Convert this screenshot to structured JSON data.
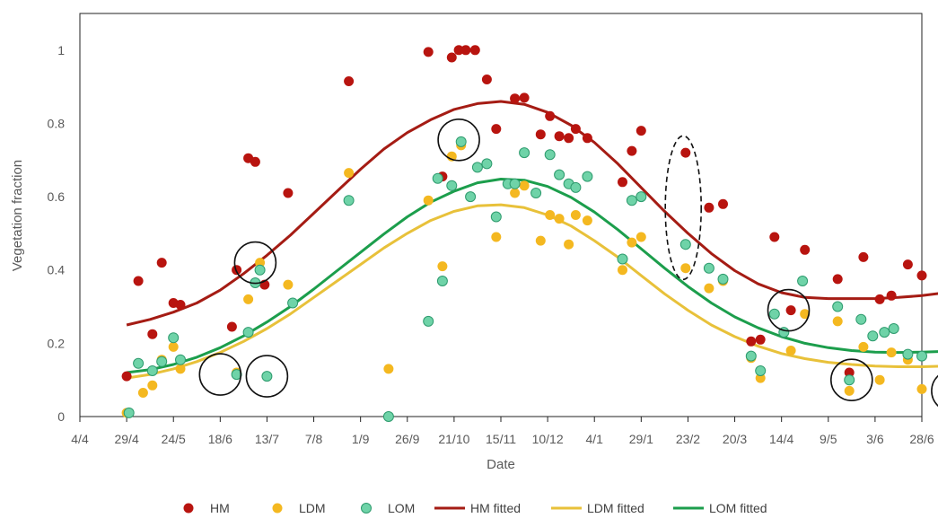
{
  "chart_data": {
    "type": "scatter",
    "xlabel": "Date",
    "ylabel": "Vegetation fraction",
    "x_ticks": [
      "4/4",
      "29/4",
      "24/5",
      "18/6",
      "13/7",
      "7/8",
      "1/9",
      "26/9",
      "21/10",
      "15/11",
      "10/12",
      "4/1",
      "29/1",
      "23/2",
      "20/3",
      "14/4",
      "9/5",
      "3/6",
      "28/6"
    ],
    "y_ticks": [
      "0",
      "0.2",
      "0.4",
      "0.6",
      "0.8",
      "1"
    ],
    "ylim": [
      0,
      1.1
    ],
    "grid": false,
    "legend_position": "bottom",
    "colors": {
      "HM": "#b8140f",
      "LDM": "#f4b820",
      "LOM": "#6fd3a8",
      "LOM_edge": "#2e9b6e",
      "HM_fit": "#a51c14",
      "LDM_fit": "#e8c13a",
      "LOM_fit": "#1c9e4c"
    },
    "series": [
      {
        "name": "HM",
        "kind": "scatter",
        "points": [
          [
            1.0,
            0.11
          ],
          [
            1.25,
            0.37
          ],
          [
            1.55,
            0.225
          ],
          [
            1.75,
            0.42
          ],
          [
            2.0,
            0.31
          ],
          [
            2.15,
            0.305
          ],
          [
            3.25,
            0.245
          ],
          [
            3.35,
            0.4
          ],
          [
            3.6,
            0.705
          ],
          [
            3.75,
            0.695
          ],
          [
            3.95,
            0.36
          ],
          [
            4.45,
            0.61
          ],
          [
            5.75,
            0.915
          ],
          [
            7.45,
            0.995
          ],
          [
            7.75,
            0.655
          ],
          [
            7.95,
            0.98
          ],
          [
            8.1,
            1.0
          ],
          [
            8.25,
            1.0
          ],
          [
            8.45,
            1.0
          ],
          [
            8.7,
            0.92
          ],
          [
            8.9,
            0.785
          ],
          [
            9.3,
            0.868
          ],
          [
            9.5,
            0.87
          ],
          [
            9.85,
            0.77
          ],
          [
            10.05,
            0.82
          ],
          [
            10.25,
            0.765
          ],
          [
            10.45,
            0.76
          ],
          [
            10.6,
            0.785
          ],
          [
            10.85,
            0.76
          ],
          [
            11.6,
            0.64
          ],
          [
            11.8,
            0.725
          ],
          [
            12.0,
            0.78
          ],
          [
            12.95,
            0.72
          ],
          [
            13.45,
            0.57
          ],
          [
            13.75,
            0.58
          ],
          [
            14.35,
            0.205
          ],
          [
            14.55,
            0.21
          ],
          [
            14.85,
            0.49
          ],
          [
            15.2,
            0.29
          ],
          [
            15.5,
            0.455
          ],
          [
            16.2,
            0.375
          ],
          [
            16.45,
            0.12
          ],
          [
            16.75,
            0.435
          ],
          [
            17.1,
            0.32
          ],
          [
            17.35,
            0.33
          ],
          [
            17.7,
            0.415
          ],
          [
            18.0,
            0.385
          ],
          [
            18.65,
            0.19
          ],
          [
            18.95,
            0.345
          ],
          [
            19.5,
            0.475
          ],
          [
            19.8,
            0.36
          ]
        ]
      },
      {
        "name": "LDM",
        "kind": "scatter",
        "points": [
          [
            1.0,
            0.01
          ],
          [
            1.35,
            0.065
          ],
          [
            1.55,
            0.085
          ],
          [
            1.75,
            0.155
          ],
          [
            2.0,
            0.19
          ],
          [
            2.15,
            0.13
          ],
          [
            3.35,
            0.12
          ],
          [
            3.6,
            0.32
          ],
          [
            3.85,
            0.42
          ],
          [
            4.0,
            0.11
          ],
          [
            4.45,
            0.36
          ],
          [
            5.75,
            0.665
          ],
          [
            6.6,
            0.13
          ],
          [
            7.45,
            0.59
          ],
          [
            7.75,
            0.41
          ],
          [
            7.95,
            0.71
          ],
          [
            8.15,
            0.74
          ],
          [
            8.5,
            0.68
          ],
          [
            8.9,
            0.49
          ],
          [
            9.3,
            0.61
          ],
          [
            9.5,
            0.63
          ],
          [
            9.85,
            0.48
          ],
          [
            10.05,
            0.55
          ],
          [
            10.25,
            0.54
          ],
          [
            10.45,
            0.47
          ],
          [
            10.6,
            0.55
          ],
          [
            10.85,
            0.535
          ],
          [
            11.6,
            0.4
          ],
          [
            11.8,
            0.475
          ],
          [
            12.0,
            0.49
          ],
          [
            12.95,
            0.405
          ],
          [
            13.45,
            0.35
          ],
          [
            13.75,
            0.37
          ],
          [
            14.35,
            0.16
          ],
          [
            14.55,
            0.105
          ],
          [
            14.85,
            0.28
          ],
          [
            15.2,
            0.18
          ],
          [
            15.5,
            0.28
          ],
          [
            16.2,
            0.26
          ],
          [
            16.45,
            0.07
          ],
          [
            16.75,
            0.19
          ],
          [
            17.1,
            0.1
          ],
          [
            17.35,
            0.175
          ],
          [
            17.7,
            0.155
          ],
          [
            18.0,
            0.075
          ],
          [
            18.65,
            0.065
          ],
          [
            18.95,
            0.11
          ],
          [
            19.5,
            0.175
          ],
          [
            19.8,
            0.085
          ]
        ]
      },
      {
        "name": "LOM",
        "kind": "scatter",
        "points": [
          [
            1.05,
            0.01
          ],
          [
            1.25,
            0.145
          ],
          [
            1.55,
            0.125
          ],
          [
            1.75,
            0.15
          ],
          [
            2.0,
            0.215
          ],
          [
            2.15,
            0.155
          ],
          [
            3.35,
            0.115
          ],
          [
            3.6,
            0.23
          ],
          [
            3.75,
            0.365
          ],
          [
            3.85,
            0.4
          ],
          [
            4.0,
            0.11
          ],
          [
            4.55,
            0.31
          ],
          [
            5.75,
            0.59
          ],
          [
            6.6,
            0.0
          ],
          [
            7.45,
            0.26
          ],
          [
            7.65,
            0.65
          ],
          [
            7.75,
            0.37
          ],
          [
            7.95,
            0.63
          ],
          [
            8.15,
            0.75
          ],
          [
            8.35,
            0.6
          ],
          [
            8.5,
            0.68
          ],
          [
            8.7,
            0.69
          ],
          [
            8.9,
            0.545
          ],
          [
            9.15,
            0.635
          ],
          [
            9.3,
            0.635
          ],
          [
            9.5,
            0.72
          ],
          [
            9.75,
            0.61
          ],
          [
            10.05,
            0.715
          ],
          [
            10.25,
            0.66
          ],
          [
            10.45,
            0.635
          ],
          [
            10.6,
            0.625
          ],
          [
            10.85,
            0.655
          ],
          [
            11.6,
            0.43
          ],
          [
            11.8,
            0.59
          ],
          [
            12.0,
            0.6
          ],
          [
            12.95,
            0.47
          ],
          [
            13.45,
            0.405
          ],
          [
            13.75,
            0.375
          ],
          [
            14.35,
            0.165
          ],
          [
            14.55,
            0.125
          ],
          [
            14.85,
            0.28
          ],
          [
            15.05,
            0.23
          ],
          [
            15.45,
            0.37
          ],
          [
            16.2,
            0.3
          ],
          [
            16.45,
            0.1
          ],
          [
            16.7,
            0.265
          ],
          [
            16.95,
            0.22
          ],
          [
            17.2,
            0.23
          ],
          [
            17.4,
            0.24
          ],
          [
            17.7,
            0.17
          ],
          [
            18.0,
            0.165
          ],
          [
            18.65,
            0.08
          ],
          [
            18.95,
            0.215
          ],
          [
            19.5,
            0.205
          ],
          [
            19.8,
            0.12
          ]
        ]
      },
      {
        "name": "HM fitted",
        "kind": "line",
        "points": [
          [
            1.0,
            0.25
          ],
          [
            1.5,
            0.265
          ],
          [
            2.0,
            0.285
          ],
          [
            2.5,
            0.31
          ],
          [
            3.0,
            0.345
          ],
          [
            3.5,
            0.39
          ],
          [
            4.0,
            0.44
          ],
          [
            4.5,
            0.495
          ],
          [
            5.0,
            0.555
          ],
          [
            5.5,
            0.615
          ],
          [
            6.0,
            0.675
          ],
          [
            6.5,
            0.73
          ],
          [
            7.0,
            0.775
          ],
          [
            7.5,
            0.81
          ],
          [
            8.0,
            0.838
          ],
          [
            8.5,
            0.854
          ],
          [
            9.0,
            0.86
          ],
          [
            9.5,
            0.852
          ],
          [
            10.0,
            0.83
          ],
          [
            10.5,
            0.795
          ],
          [
            11.0,
            0.748
          ],
          [
            11.5,
            0.69
          ],
          [
            12.0,
            0.625
          ],
          [
            12.5,
            0.56
          ],
          [
            13.0,
            0.5
          ],
          [
            13.5,
            0.445
          ],
          [
            14.0,
            0.398
          ],
          [
            14.5,
            0.362
          ],
          [
            15.0,
            0.338
          ],
          [
            15.5,
            0.325
          ],
          [
            16.0,
            0.322
          ],
          [
            16.5,
            0.322
          ],
          [
            17.0,
            0.322
          ],
          [
            17.5,
            0.325
          ],
          [
            18.0,
            0.33
          ],
          [
            18.5,
            0.338
          ],
          [
            19.0,
            0.35
          ],
          [
            19.5,
            0.365
          ],
          [
            19.8,
            0.38
          ]
        ]
      },
      {
        "name": "LDM fitted",
        "kind": "line",
        "points": [
          [
            1.0,
            0.105
          ],
          [
            1.5,
            0.115
          ],
          [
            2.0,
            0.13
          ],
          [
            2.5,
            0.15
          ],
          [
            3.0,
            0.175
          ],
          [
            3.5,
            0.205
          ],
          [
            4.0,
            0.24
          ],
          [
            4.5,
            0.28
          ],
          [
            5.0,
            0.325
          ],
          [
            5.5,
            0.37
          ],
          [
            6.0,
            0.415
          ],
          [
            6.5,
            0.46
          ],
          [
            7.0,
            0.5
          ],
          [
            7.5,
            0.535
          ],
          [
            8.0,
            0.56
          ],
          [
            8.5,
            0.575
          ],
          [
            9.0,
            0.578
          ],
          [
            9.5,
            0.57
          ],
          [
            10.0,
            0.55
          ],
          [
            10.5,
            0.52
          ],
          [
            11.0,
            0.48
          ],
          [
            11.5,
            0.435
          ],
          [
            12.0,
            0.385
          ],
          [
            12.5,
            0.335
          ],
          [
            13.0,
            0.29
          ],
          [
            13.5,
            0.25
          ],
          [
            14.0,
            0.218
          ],
          [
            14.5,
            0.192
          ],
          [
            15.0,
            0.172
          ],
          [
            15.5,
            0.158
          ],
          [
            16.0,
            0.148
          ],
          [
            16.5,
            0.142
          ],
          [
            17.0,
            0.138
          ],
          [
            17.5,
            0.136
          ],
          [
            18.0,
            0.136
          ],
          [
            18.5,
            0.138
          ],
          [
            19.0,
            0.142
          ],
          [
            19.5,
            0.15
          ],
          [
            19.8,
            0.157
          ]
        ]
      },
      {
        "name": "LOM fitted",
        "kind": "line",
        "points": [
          [
            1.0,
            0.12
          ],
          [
            1.5,
            0.128
          ],
          [
            2.0,
            0.142
          ],
          [
            2.5,
            0.162
          ],
          [
            3.0,
            0.188
          ],
          [
            3.5,
            0.22
          ],
          [
            4.0,
            0.258
          ],
          [
            4.5,
            0.3
          ],
          [
            5.0,
            0.348
          ],
          [
            5.5,
            0.398
          ],
          [
            6.0,
            0.448
          ],
          [
            6.5,
            0.498
          ],
          [
            7.0,
            0.545
          ],
          [
            7.5,
            0.585
          ],
          [
            8.0,
            0.615
          ],
          [
            8.5,
            0.638
          ],
          [
            9.0,
            0.648
          ],
          [
            9.5,
            0.645
          ],
          [
            10.0,
            0.628
          ],
          [
            10.5,
            0.598
          ],
          [
            11.0,
            0.558
          ],
          [
            11.5,
            0.51
          ],
          [
            12.0,
            0.458
          ],
          [
            12.5,
            0.405
          ],
          [
            13.0,
            0.355
          ],
          [
            13.5,
            0.31
          ],
          [
            14.0,
            0.272
          ],
          [
            14.5,
            0.242
          ],
          [
            15.0,
            0.218
          ],
          [
            15.5,
            0.2
          ],
          [
            16.0,
            0.188
          ],
          [
            16.5,
            0.18
          ],
          [
            17.0,
            0.176
          ],
          [
            17.5,
            0.175
          ],
          [
            18.0,
            0.176
          ],
          [
            18.5,
            0.178
          ],
          [
            19.0,
            0.183
          ],
          [
            19.5,
            0.19
          ],
          [
            19.8,
            0.196
          ]
        ]
      }
    ],
    "annotations": {
      "circles": [
        {
          "x": 3.75,
          "y": 0.42
        },
        {
          "x": 3.0,
          "y": 0.115
        },
        {
          "x": 4.0,
          "y": 0.11
        },
        {
          "x": 8.1,
          "y": 0.755
        },
        {
          "x": 15.15,
          "y": 0.29
        },
        {
          "x": 16.5,
          "y": 0.1
        },
        {
          "x": 18.65,
          "y": 0.07
        }
      ],
      "dashed_ellipses": [
        {
          "x": 12.9,
          "y": 0.57
        }
      ]
    }
  }
}
